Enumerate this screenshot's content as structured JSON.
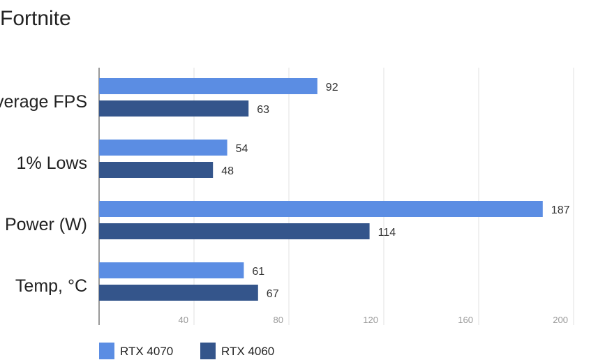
{
  "chart_data": {
    "type": "bar",
    "orientation": "horizontal",
    "title": "Fortnite",
    "xlabel": "",
    "ylabel": "",
    "categories": [
      "Average FPS",
      "1% Lows",
      "Power (W)",
      "Temp, °C"
    ],
    "series": [
      {
        "name": "RTX 4070",
        "color": "#5b8de3",
        "values": [
          92,
          54,
          187,
          61
        ]
      },
      {
        "name": "RTX 4060",
        "color": "#34558b",
        "values": [
          63,
          48,
          114,
          67
        ]
      }
    ],
    "xticks": [
      40,
      80,
      120,
      160,
      200
    ],
    "xlim": [
      0,
      200
    ],
    "grid": true,
    "legend": "bottom-left"
  }
}
